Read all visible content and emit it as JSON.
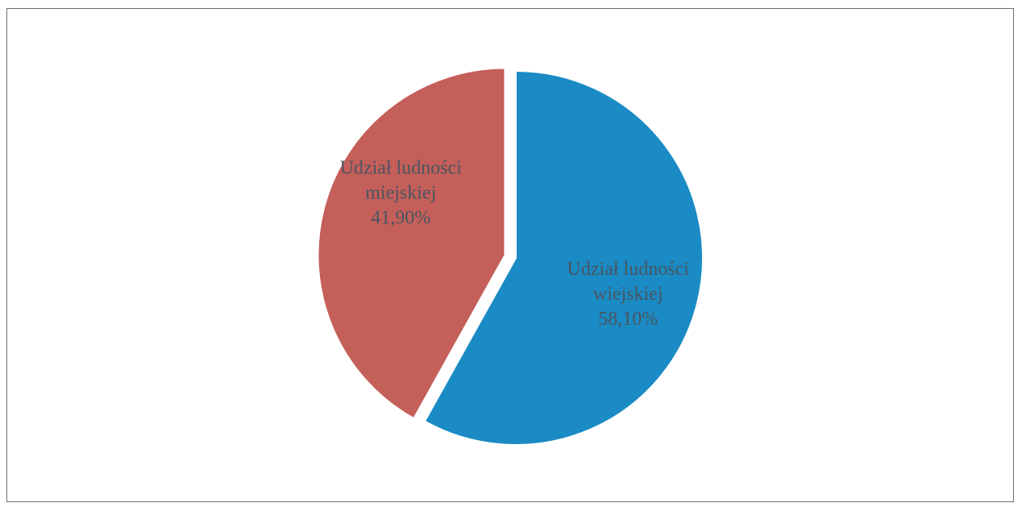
{
  "chart_data": {
    "type": "pie",
    "title": "",
    "legend": "none",
    "slices": [
      {
        "label_lines": [
          "Udział ludności",
          "wiejskiej",
          "58,10%"
        ],
        "value": 58.1,
        "color": "#1a8bc4",
        "exploded": false
      },
      {
        "label_lines": [
          "Udział ludności",
          "miejskiej",
          "41,90%"
        ],
        "value": 41.9,
        "color": "#c45f5a",
        "exploded": true
      }
    ]
  }
}
